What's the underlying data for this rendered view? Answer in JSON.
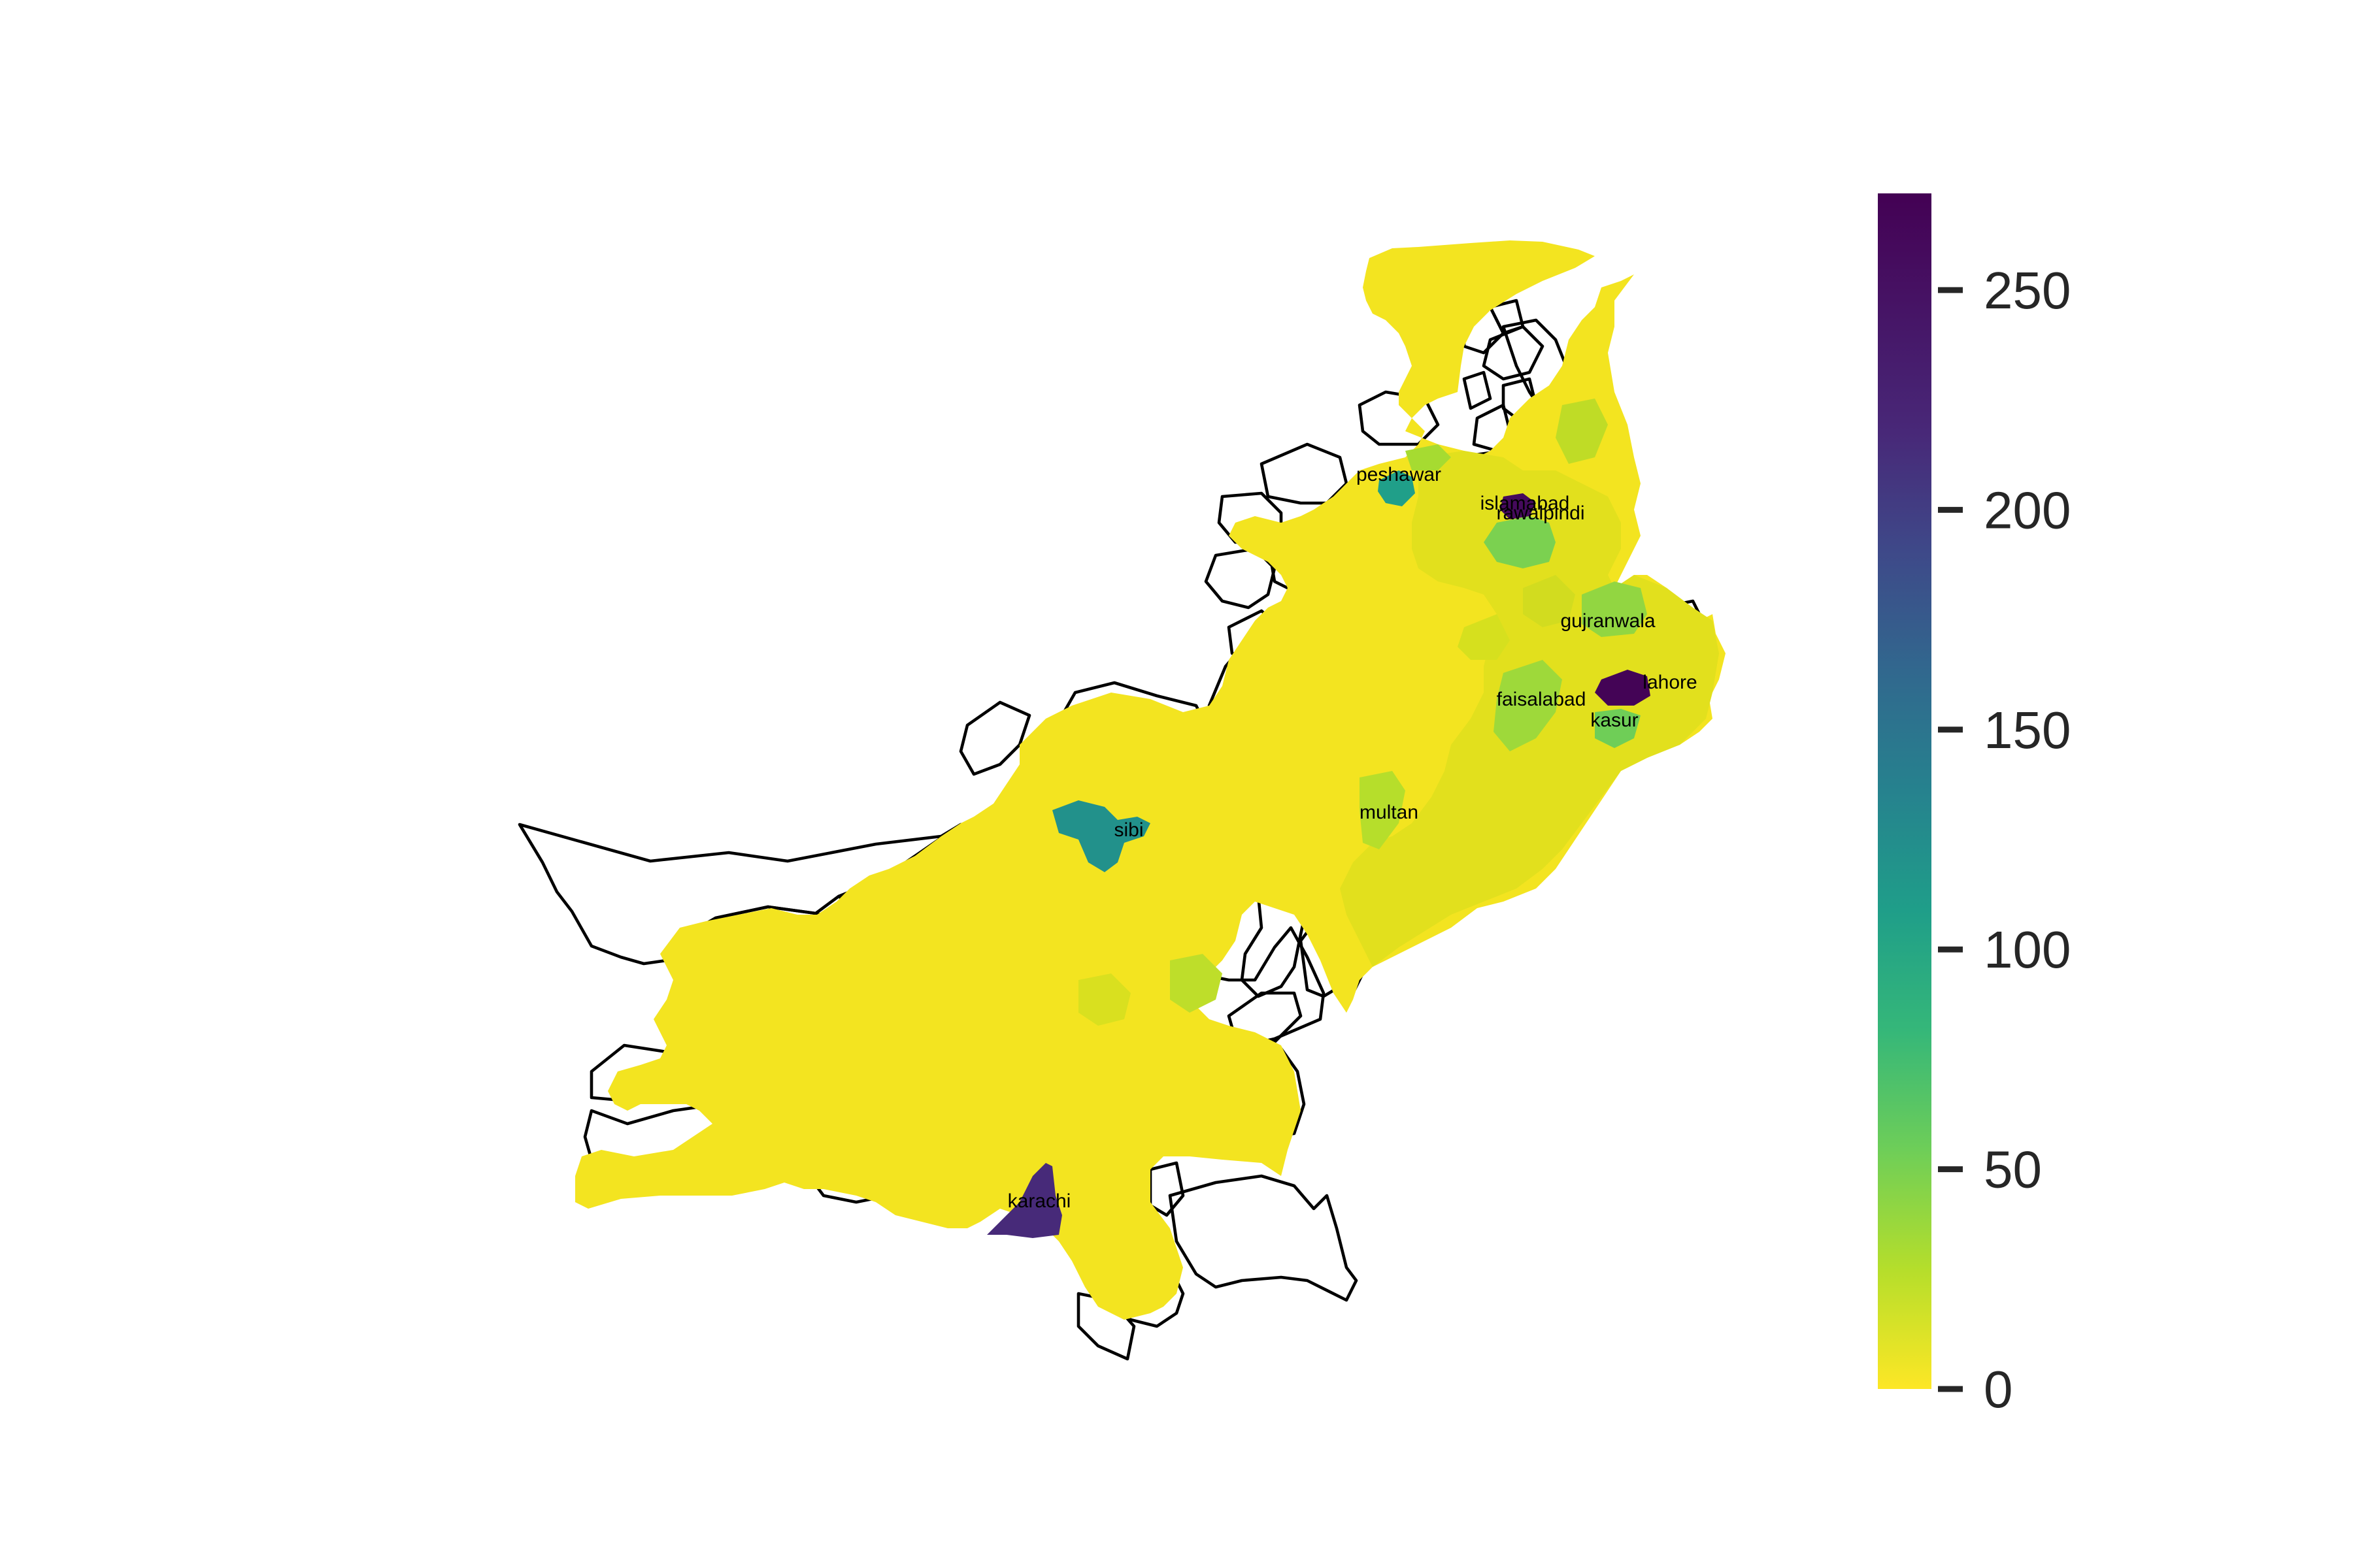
{
  "map": {
    "colormap": "viridis",
    "scale_range": [
      0,
      272
    ],
    "no_data_color": "#ffffff",
    "cities": [
      {
        "id": "peshawar",
        "label": "peshawar",
        "value": 120
      },
      {
        "id": "islamabad",
        "label": "islamabad",
        "value": 265
      },
      {
        "id": "rawalpindi",
        "label": "rawalpindi",
        "value": 55
      },
      {
        "id": "gujranwala",
        "label": "gujranwala",
        "value": 45
      },
      {
        "id": "lahore",
        "label": "lahore",
        "value": 270
      },
      {
        "id": "faisalabad",
        "label": "faisalabad",
        "value": 40
      },
      {
        "id": "kasur",
        "label": "kasur",
        "value": 60
      },
      {
        "id": "multan",
        "label": "multan",
        "value": 30
      },
      {
        "id": "sibi",
        "label": "sibi",
        "value": 135
      },
      {
        "id": "karachi",
        "label": "karachi",
        "value": 240
      }
    ]
  },
  "colorbar": {
    "min": 0,
    "max": 272,
    "ticks": [
      {
        "value": 0,
        "label": "0"
      },
      {
        "value": 50,
        "label": "50"
      },
      {
        "value": 100,
        "label": "100"
      },
      {
        "value": 150,
        "label": "150"
      },
      {
        "value": 200,
        "label": "200"
      },
      {
        "value": 250,
        "label": "250"
      }
    ]
  }
}
